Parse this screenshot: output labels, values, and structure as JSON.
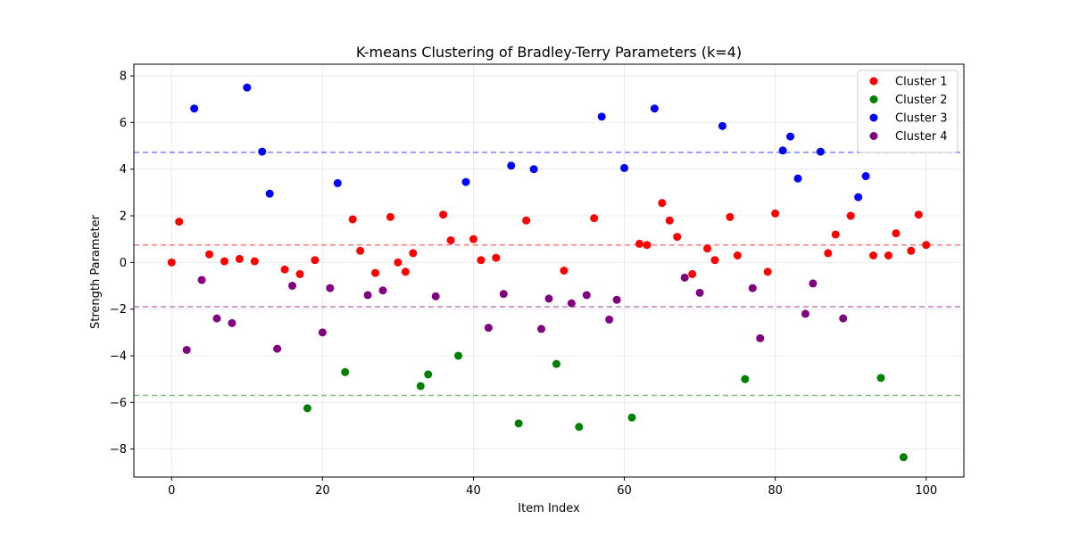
{
  "chart_data": {
    "type": "scatter",
    "title": "K-means Clustering of Bradley-Terry Parameters (k=4)",
    "xlabel": "Item Index",
    "ylabel": "Strength Parameter",
    "xlim": [
      -5,
      105
    ],
    "ylim": [
      -9.2,
      8.5
    ],
    "xticks": [
      0,
      20,
      40,
      60,
      80,
      100
    ],
    "yticks": [
      -8,
      -6,
      -4,
      -2,
      0,
      2,
      4,
      6,
      8
    ],
    "grid": true,
    "legend_position": "top-right",
    "series": [
      {
        "name": "Cluster 1",
        "color": "#ff0000",
        "centroid": 0.75,
        "points": [
          [
            0,
            0.0
          ],
          [
            1,
            1.75
          ],
          [
            5,
            0.35
          ],
          [
            7,
            0.05
          ],
          [
            9,
            0.15
          ],
          [
            11,
            0.05
          ],
          [
            15,
            -0.3
          ],
          [
            17,
            -0.5
          ],
          [
            19,
            0.1
          ],
          [
            24,
            1.85
          ],
          [
            25,
            0.5
          ],
          [
            27,
            -0.45
          ],
          [
            29,
            1.95
          ],
          [
            30,
            0.0
          ],
          [
            31,
            -0.4
          ],
          [
            32,
            0.4
          ],
          [
            36,
            2.05
          ],
          [
            37,
            0.95
          ],
          [
            40,
            1.0
          ],
          [
            41,
            0.1
          ],
          [
            43,
            0.2
          ],
          [
            47,
            1.8
          ],
          [
            52,
            -0.35
          ],
          [
            56,
            1.9
          ],
          [
            62,
            0.8
          ],
          [
            63,
            0.75
          ],
          [
            65,
            2.55
          ],
          [
            66,
            1.8
          ],
          [
            67,
            1.1
          ],
          [
            69,
            -0.5
          ],
          [
            71,
            0.6
          ],
          [
            72,
            0.1
          ],
          [
            74,
            1.95
          ],
          [
            75,
            0.3
          ],
          [
            79,
            -0.4
          ],
          [
            80,
            2.1
          ],
          [
            87,
            0.4
          ],
          [
            88,
            1.2
          ],
          [
            90,
            2.0
          ],
          [
            93,
            0.3
          ],
          [
            95,
            0.3
          ],
          [
            96,
            1.25
          ],
          [
            98,
            0.5
          ],
          [
            99,
            2.05
          ],
          [
            100,
            0.75
          ]
        ]
      },
      {
        "name": "Cluster 2",
        "color": "#008000",
        "centroid": -5.7,
        "points": [
          [
            18,
            -6.25
          ],
          [
            23,
            -4.7
          ],
          [
            33,
            -5.3
          ],
          [
            34,
            -4.8
          ],
          [
            38,
            -4.0
          ],
          [
            46,
            -6.9
          ],
          [
            51,
            -4.35
          ],
          [
            54,
            -7.05
          ],
          [
            61,
            -6.65
          ],
          [
            76,
            -5.0
          ],
          [
            94,
            -4.95
          ],
          [
            97,
            -8.35
          ]
        ]
      },
      {
        "name": "Cluster 3",
        "color": "#0000ff",
        "centroid": 4.72,
        "points": [
          [
            3,
            6.6
          ],
          [
            10,
            7.5
          ],
          [
            12,
            4.75
          ],
          [
            13,
            2.95
          ],
          [
            22,
            3.4
          ],
          [
            39,
            3.45
          ],
          [
            45,
            4.15
          ],
          [
            48,
            4.0
          ],
          [
            57,
            6.25
          ],
          [
            60,
            4.05
          ],
          [
            64,
            6.6
          ],
          [
            73,
            5.85
          ],
          [
            81,
            4.8
          ],
          [
            82,
            5.4
          ],
          [
            83,
            3.6
          ],
          [
            86,
            4.75
          ],
          [
            91,
            2.8
          ],
          [
            92,
            3.7
          ]
        ]
      },
      {
        "name": "Cluster 4",
        "color": "#800080",
        "centroid": -1.9,
        "points": [
          [
            2,
            -3.75
          ],
          [
            4,
            -0.75
          ],
          [
            6,
            -2.4
          ],
          [
            8,
            -2.6
          ],
          [
            14,
            -3.7
          ],
          [
            16,
            -1.0
          ],
          [
            20,
            -3.0
          ],
          [
            21,
            -1.1
          ],
          [
            26,
            -1.4
          ],
          [
            28,
            -1.2
          ],
          [
            35,
            -1.45
          ],
          [
            42,
            -2.8
          ],
          [
            44,
            -1.35
          ],
          [
            49,
            -2.85
          ],
          [
            50,
            -1.55
          ],
          [
            53,
            -1.75
          ],
          [
            55,
            -1.4
          ],
          [
            58,
            -2.45
          ],
          [
            59,
            -1.6
          ],
          [
            68,
            -0.65
          ],
          [
            70,
            -1.3
          ],
          [
            77,
            -1.1
          ],
          [
            78,
            -3.25
          ],
          [
            84,
            -2.2
          ],
          [
            85,
            -0.9
          ],
          [
            89,
            -2.4
          ]
        ]
      }
    ]
  }
}
